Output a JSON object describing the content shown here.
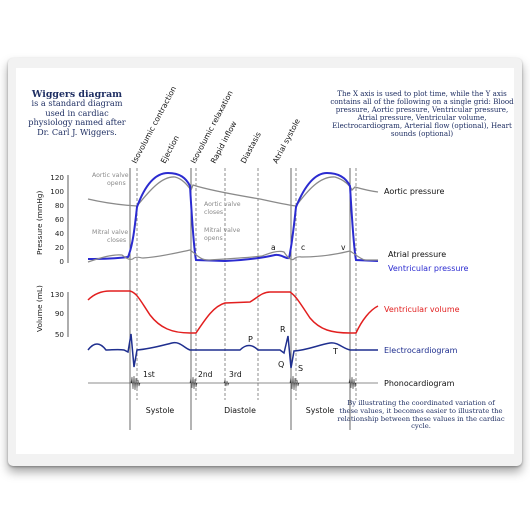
{
  "intro": {
    "title": "Wiggers diagram",
    "text": "is a standard diagram used in cardiac physiology named after Dr. Carl J. Wiggers."
  },
  "x_axis_description": "The X axis is used to plot time, while the Y axis contains all of the following on a single grid: Blood pressure, Aortic pressure, Ventricular pressure, Atrial pressure, Ventricular volume, Electrocardiogram, Arterial flow (optional), Heart sounds (optional)",
  "conclusion": "By illustrating the coordinated variation of these values, it becomes easier to illustrate the relationship between these values in the cardiac cycle.",
  "phases": [
    "Isovolumic contraction",
    "Ejection",
    "Isovolumic relaxation",
    "Rapid inflow",
    "Diastasis",
    "Atrial systole"
  ],
  "pressure_axis": {
    "label": "Pressure (mmHg)",
    "ticks": [
      "120",
      "100",
      "80",
      "60",
      "40",
      "20",
      "0"
    ]
  },
  "volume_axis": {
    "label": "Volume (mL)",
    "ticks": [
      "130",
      "90",
      "50"
    ]
  },
  "curve_labels": {
    "aortic": "Aortic pressure",
    "atrial": "Atrial pressure",
    "ventricular_pressure": "Ventricular pressure",
    "ventricular_volume": "Ventricular volume",
    "ecg": "Electrocardiogram",
    "phono": "Phonocardiogram"
  },
  "annotations": {
    "aortic_opens": [
      "Aortic valve",
      "opens"
    ],
    "mitral_closes": [
      "Mitral valve",
      "closes"
    ],
    "aortic_closes": [
      "Aortic valve",
      "closes"
    ],
    "mitral_opens": [
      "Mitral valve",
      "opens"
    ]
  },
  "wave_letters": {
    "a": "a",
    "c": "c",
    "v": "v"
  },
  "ecg_letters": {
    "P": "P",
    "Q": "Q",
    "R": "R",
    "S": "S",
    "T": "T"
  },
  "heart_sounds": [
    "1st",
    "2nd",
    "3rd"
  ],
  "bottom_labels": [
    "Systole",
    "Diastole",
    "Systole"
  ],
  "colors": {
    "ventricular_pressure": "#2b2bd0",
    "volume": "#e21f1f",
    "ecg": "#1f2f8f",
    "aortic": "#8a8a8a",
    "text_blue": "#1f2f63",
    "grid": "#444444"
  }
}
